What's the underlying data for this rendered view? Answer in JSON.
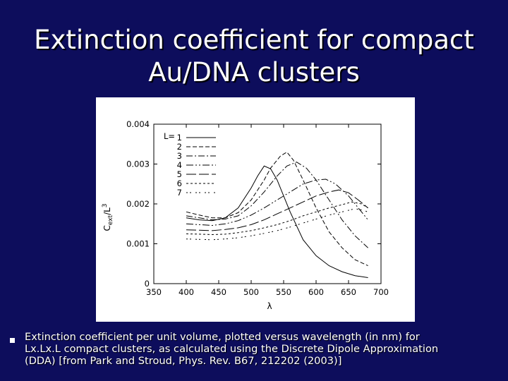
{
  "slide": {
    "title_lines": [
      "Extinction coefficient for compact",
      "Au/DNA clusters"
    ],
    "caption_lines": [
      "Extinction coefficient per unit volume, plotted versus wavelength (in nm) for",
      "Lx.Lx.L compact clusters, as calculated using the Discrete Dipole Approximation",
      "(DDA) [from Park and Stroud, Phys. Rev. B67, 212202 (2003)]"
    ],
    "colors": {
      "background": "#0d0d5c",
      "text": "#ffffff"
    }
  },
  "chart_data": {
    "type": "line",
    "xlabel": "λ",
    "ylabel_main": "C",
    "ylabel_sub": "ext",
    "ylabel_tail": "/L",
    "ylabel_sup": "3",
    "xlim": [
      350,
      700
    ],
    "ylim": [
      0,
      0.004
    ],
    "xticks": [
      350,
      400,
      450,
      500,
      550,
      600,
      650,
      700
    ],
    "xtick_labels": [
      "350",
      "400",
      "450",
      "500",
      "550",
      "600",
      "650",
      "700"
    ],
    "yticks": [
      0,
      0.001,
      0.002,
      0.003,
      0.004
    ],
    "ytick_labels": [
      "0",
      "0.001",
      "0.002",
      "0.003",
      "0.004"
    ],
    "grid": false,
    "legend_title": "L=",
    "legend_position": "top-left",
    "series": [
      {
        "name": "1",
        "dash": "none",
        "points": [
          [
            400,
            0.00165
          ],
          [
            420,
            0.0016
          ],
          [
            440,
            0.00158
          ],
          [
            460,
            0.00165
          ],
          [
            480,
            0.0019
          ],
          [
            500,
            0.0024
          ],
          [
            510,
            0.0027
          ],
          [
            520,
            0.00295
          ],
          [
            530,
            0.00288
          ],
          [
            540,
            0.0026
          ],
          [
            560,
            0.0018
          ],
          [
            580,
            0.0011
          ],
          [
            600,
            0.0007
          ],
          [
            620,
            0.00045
          ],
          [
            640,
            0.0003
          ],
          [
            660,
            0.0002
          ],
          [
            680,
            0.00015
          ]
        ]
      },
      {
        "name": "2",
        "dash": "6,3",
        "points": [
          [
            400,
            0.0018
          ],
          [
            420,
            0.00172
          ],
          [
            440,
            0.00165
          ],
          [
            460,
            0.00165
          ],
          [
            480,
            0.00178
          ],
          [
            500,
            0.0021
          ],
          [
            520,
            0.0026
          ],
          [
            530,
            0.0029
          ],
          [
            545,
            0.0032
          ],
          [
            555,
            0.0033
          ],
          [
            565,
            0.0031
          ],
          [
            580,
            0.0026
          ],
          [
            600,
            0.0019
          ],
          [
            620,
            0.0013
          ],
          [
            640,
            0.0009
          ],
          [
            660,
            0.0006
          ],
          [
            680,
            0.00045
          ]
        ]
      },
      {
        "name": "3",
        "dash": "9,3,2,3",
        "points": [
          [
            400,
            0.0017
          ],
          [
            420,
            0.00165
          ],
          [
            440,
            0.0016
          ],
          [
            460,
            0.00162
          ],
          [
            480,
            0.0017
          ],
          [
            500,
            0.00195
          ],
          [
            520,
            0.0023
          ],
          [
            540,
            0.0027
          ],
          [
            555,
            0.00295
          ],
          [
            570,
            0.00305
          ],
          [
            585,
            0.0029
          ],
          [
            600,
            0.0026
          ],
          [
            620,
            0.0021
          ],
          [
            640,
            0.0016
          ],
          [
            660,
            0.0012
          ],
          [
            680,
            0.0009
          ]
        ]
      },
      {
        "name": "4",
        "dash": "10,3,2,3,2,3",
        "points": [
          [
            400,
            0.0015
          ],
          [
            420,
            0.00148
          ],
          [
            440,
            0.00146
          ],
          [
            460,
            0.0015
          ],
          [
            480,
            0.00158
          ],
          [
            500,
            0.00172
          ],
          [
            520,
            0.0019
          ],
          [
            540,
            0.0021
          ],
          [
            560,
            0.0023
          ],
          [
            580,
            0.0025
          ],
          [
            600,
            0.0026
          ],
          [
            615,
            0.00262
          ],
          [
            630,
            0.0025
          ],
          [
            650,
            0.0022
          ],
          [
            670,
            0.0018
          ],
          [
            680,
            0.0016
          ]
        ]
      },
      {
        "name": "5",
        "dash": "14,4",
        "points": [
          [
            400,
            0.00135
          ],
          [
            420,
            0.00134
          ],
          [
            440,
            0.00133
          ],
          [
            460,
            0.00136
          ],
          [
            480,
            0.0014
          ],
          [
            500,
            0.00148
          ],
          [
            520,
            0.0016
          ],
          [
            540,
            0.00175
          ],
          [
            560,
            0.0019
          ],
          [
            580,
            0.00205
          ],
          [
            600,
            0.0022
          ],
          [
            620,
            0.0023
          ],
          [
            635,
            0.00235
          ],
          [
            650,
            0.00228
          ],
          [
            665,
            0.0021
          ],
          [
            680,
            0.0019
          ]
        ]
      },
      {
        "name": "6",
        "dash": "3,3",
        "points": [
          [
            400,
            0.00125
          ],
          [
            420,
            0.00124
          ],
          [
            440,
            0.00123
          ],
          [
            460,
            0.00124
          ],
          [
            480,
            0.00128
          ],
          [
            500,
            0.00133
          ],
          [
            520,
            0.0014
          ],
          [
            540,
            0.00148
          ],
          [
            560,
            0.00158
          ],
          [
            580,
            0.0017
          ],
          [
            600,
            0.0018
          ],
          [
            620,
            0.0019
          ],
          [
            640,
            0.00198
          ],
          [
            655,
            0.00205
          ],
          [
            670,
            0.002
          ],
          [
            680,
            0.0019
          ]
        ]
      },
      {
        "name": "7",
        "dash": "2,3,2,6",
        "points": [
          [
            400,
            0.00112
          ],
          [
            420,
            0.00111
          ],
          [
            440,
            0.0011
          ],
          [
            460,
            0.00112
          ],
          [
            480,
            0.00115
          ],
          [
            500,
            0.0012
          ],
          [
            520,
            0.00126
          ],
          [
            540,
            0.00133
          ],
          [
            560,
            0.00142
          ],
          [
            580,
            0.00152
          ],
          [
            600,
            0.00162
          ],
          [
            620,
            0.00172
          ],
          [
            640,
            0.0018
          ],
          [
            660,
            0.00188
          ],
          [
            670,
            0.00185
          ],
          [
            680,
            0.0018
          ]
        ]
      }
    ]
  }
}
